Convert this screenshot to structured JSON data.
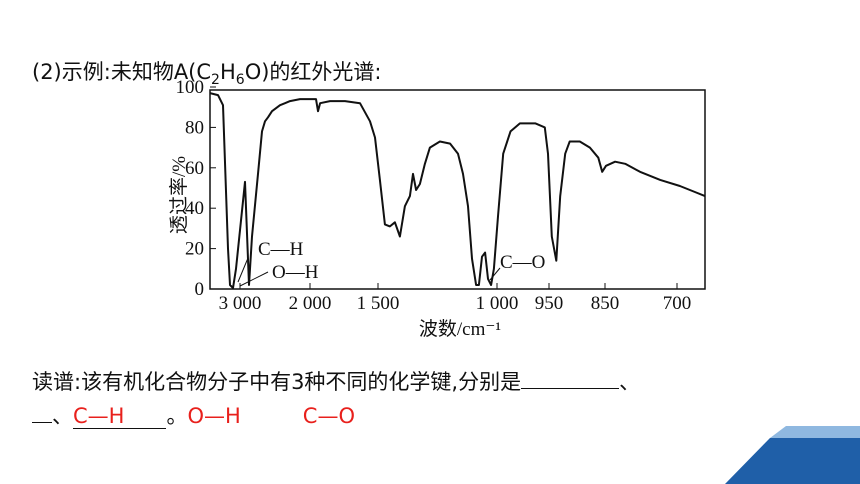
{
  "page": {
    "heading": [
      "(2)示例:未知物A(C",
      "2",
      "H",
      "6",
      "O)的红外光谱:"
    ],
    "question": "读谱:该有机化合物分子中有3种不同的化学键,分别是",
    "sep": "、",
    "end": "。",
    "answers": [
      "C—H",
      "O—H",
      "C—O"
    ]
  },
  "chart_data": {
    "type": "line",
    "xlabel": "波数/cm⁻¹",
    "ylabel": "透过率/%",
    "annotations": [
      "C—H",
      "O—H",
      "C—O"
    ],
    "x": [
      3430,
      3316,
      3244,
      3172,
      3143,
      3100,
      3057,
      2929,
      2871,
      2829,
      2743,
      2686,
      2643,
      2600,
      2543,
      2429,
      2357,
      2286,
      2143,
      1956,
      1941,
      1926,
      1853,
      1743,
      1632,
      1559,
      1522,
      1492,
      1471,
      1450,
      1429,
      1408,
      1387,
      1366,
      1353,
      1340,
      1324,
      1303,
      1282,
      1240,
      1197,
      1164,
      1143,
      1122,
      1105,
      1088,
      1076,
      1063,
      1050,
      1038,
      1025,
      1013,
      999,
      994,
      987,
      978,
      963,
      954,
      951,
      945,
      937,
      930,
      921,
      913,
      895,
      877,
      862,
      855,
      848,
      829,
      808,
      777,
      735,
      694,
      663,
      642
    ],
    "values": [
      97,
      96,
      91,
      20,
      2,
      0.5,
      10,
      53,
      2,
      26,
      57,
      78,
      83,
      85,
      88,
      91,
      92,
      93,
      94,
      94,
      88,
      92,
      93,
      93,
      92,
      83,
      75,
      54,
      32,
      31,
      33,
      26,
      41,
      46,
      57,
      49,
      52,
      62,
      70,
      73,
      72,
      67,
      57,
      41,
      15,
      2,
      2,
      16,
      18,
      5,
      2,
      10,
      36,
      67,
      78,
      82,
      82,
      80,
      67,
      26,
      14,
      46,
      67,
      73,
      73,
      70,
      65,
      58,
      61,
      63,
      62,
      58,
      54,
      51,
      48,
      46
    ],
    "color": "#111111",
    "xlim": [
      3430,
      642
    ],
    "xticks": [
      {
        "value": 3000,
        "label": "3 000"
      },
      {
        "value": 2000,
        "label": "2 000"
      },
      {
        "value": 1500,
        "label": "1 500"
      },
      {
        "value": 1000,
        "label": "1 000"
      },
      950,
      850,
      700
    ],
    "ylim": [
      0,
      100
    ],
    "yticks": [
      0,
      20,
      40,
      60,
      80,
      100
    ]
  }
}
